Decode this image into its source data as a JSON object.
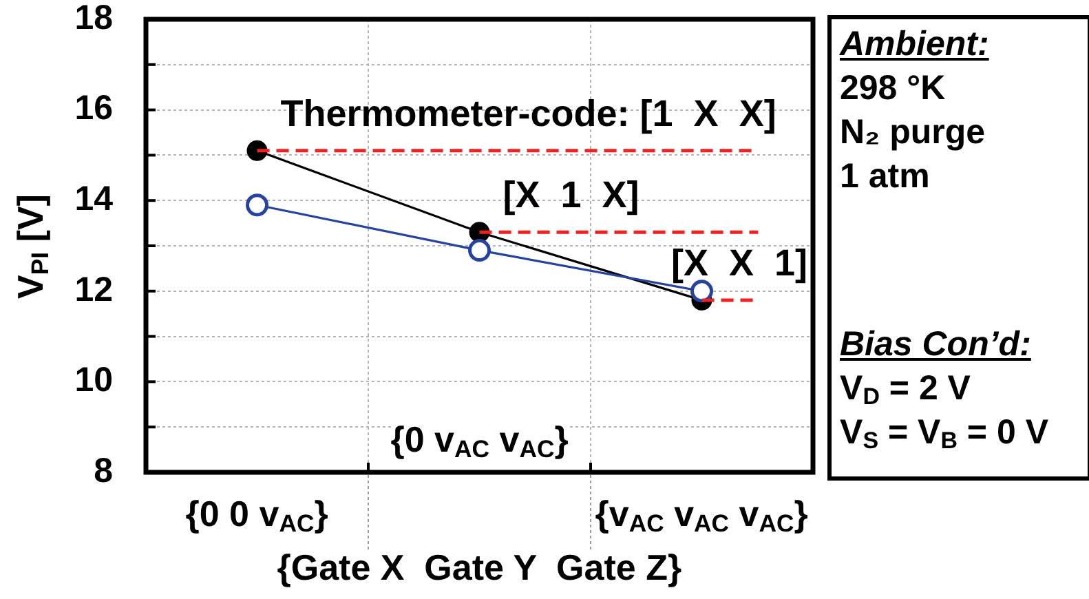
{
  "chart_data": {
    "type": "line",
    "categories": [
      "{0 0 v$_{AC}$}",
      "{0 v$_{AC}$ v$_{AC}$}",
      "{v$_{AC}$ v$_{AC}$ v$_{AC}$}"
    ],
    "xlabel": "{Gate X  Gate Y  Gate Z}",
    "ylabel": "V$_{PI}$ [V]",
    "series": [
      {
        "color": "#000000",
        "values": [
          15.1,
          13.3,
          11.8
        ]
      },
      {
        "color": "#2643a0",
        "values": [
          13.9,
          12.9,
          12.0
        ]
      }
    ],
    "ylim": [
      8,
      18
    ],
    "yticks": [
      8,
      {
        "value": 9,
        "label": null
      },
      10,
      {
        "value": 11,
        "label": null
      },
      12,
      {
        "value": 13,
        "label": null
      },
      14,
      {
        "value": 15,
        "label": null
      },
      16,
      {
        "value": 17,
        "label": null
      },
      18
    ],
    "grid": true,
    "marker": "circle",
    "ref_lines": [
      {
        "axis": "y",
        "value": 15.1,
        "label": "Thermometer-code: [1  X  X]",
        "color": "#ee2222",
        "line_style": "dashed"
      },
      {
        "axis": "y",
        "value": 13.3,
        "label": "[X  1  X]",
        "color": "#ee2222",
        "line_style": "dashed"
      },
      {
        "axis": "y",
        "value": 11.8,
        "label": "[X  X  1]",
        "color": "#ee2222",
        "line_style": "dashed"
      }
    ],
    "annotations": [
      "Ambient:",
      "298 °K",
      "N₂ purge",
      "1 atm",
      "Bias Con’d:",
      "V$_{D}$ = 2 V",
      "V$_{S}$ = V$_{B}$ = 0 V"
    ]
  }
}
